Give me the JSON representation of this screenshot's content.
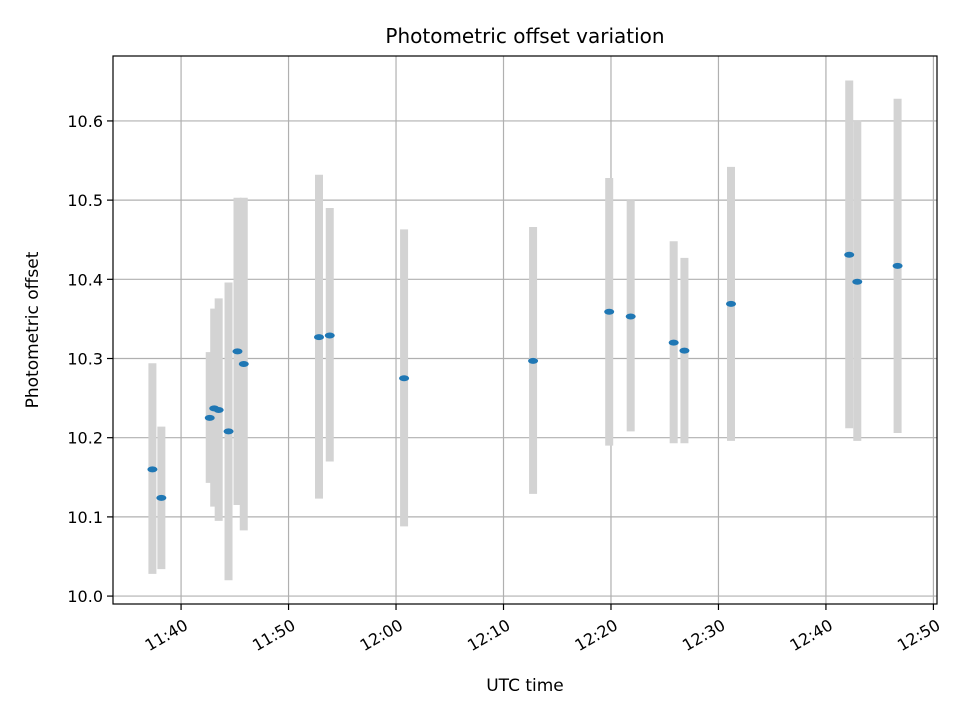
{
  "chart_data": {
    "type": "scatter",
    "title": "Photometric offset variation",
    "xlabel": "UTC time",
    "ylabel": "Photometric offset",
    "x_unit": "UTC time (HH:MM)",
    "xlim": [
      "11:33:40",
      "12:50:20"
    ],
    "ylim": [
      9.99,
      10.682
    ],
    "xticks": [
      "11:40",
      "11:50",
      "12:00",
      "12:10",
      "12:20",
      "12:30",
      "12:40",
      "12:50"
    ],
    "yticks": [
      10.0,
      10.1,
      10.2,
      10.3,
      10.4,
      10.5,
      10.6
    ],
    "ytick_labels": [
      "10.0",
      "10.1",
      "10.2",
      "10.3",
      "10.4",
      "10.5",
      "10.6"
    ],
    "grid": true,
    "colors": {
      "point": "#1f77b4",
      "errorbar": "#d3d3d3",
      "grid": "#b0b0b0"
    },
    "points": [
      {
        "x": "11:37:20",
        "y": 10.16,
        "ylow": 10.028,
        "yhigh": 10.294
      },
      {
        "x": "11:38:10",
        "y": 10.124,
        "ylow": 10.034,
        "yhigh": 10.214
      },
      {
        "x": "11:42:40",
        "y": 10.225,
        "ylow": 10.143,
        "yhigh": 10.308
      },
      {
        "x": "11:43:05",
        "y": 10.237,
        "ylow": 10.113,
        "yhigh": 10.363
      },
      {
        "x": "11:43:30",
        "y": 10.235,
        "ylow": 10.095,
        "yhigh": 10.376
      },
      {
        "x": "11:44:25",
        "y": 10.208,
        "ylow": 10.02,
        "yhigh": 10.396
      },
      {
        "x": "11:45:15",
        "y": 10.309,
        "ylow": 10.115,
        "yhigh": 10.503
      },
      {
        "x": "11:45:50",
        "y": 10.293,
        "ylow": 10.083,
        "yhigh": 10.503
      },
      {
        "x": "11:52:50",
        "y": 10.327,
        "ylow": 10.123,
        "yhigh": 10.532
      },
      {
        "x": "11:53:50",
        "y": 10.329,
        "ylow": 10.17,
        "yhigh": 10.49
      },
      {
        "x": "12:00:45",
        "y": 10.275,
        "ylow": 10.088,
        "yhigh": 10.463
      },
      {
        "x": "12:12:45",
        "y": 10.297,
        "ylow": 10.129,
        "yhigh": 10.466
      },
      {
        "x": "12:19:50",
        "y": 10.359,
        "ylow": 10.19,
        "yhigh": 10.528
      },
      {
        "x": "12:21:50",
        "y": 10.353,
        "ylow": 10.208,
        "yhigh": 10.5
      },
      {
        "x": "12:25:50",
        "y": 10.32,
        "ylow": 10.193,
        "yhigh": 10.448
      },
      {
        "x": "12:26:50",
        "y": 10.31,
        "ylow": 10.193,
        "yhigh": 10.427
      },
      {
        "x": "12:31:10",
        "y": 10.369,
        "ylow": 10.196,
        "yhigh": 10.542
      },
      {
        "x": "12:42:10",
        "y": 10.431,
        "ylow": 10.212,
        "yhigh": 10.651
      },
      {
        "x": "12:42:55",
        "y": 10.397,
        "ylow": 10.196,
        "yhigh": 10.601
      },
      {
        "x": "12:46:40",
        "y": 10.417,
        "ylow": 10.206,
        "yhigh": 10.628
      }
    ]
  }
}
